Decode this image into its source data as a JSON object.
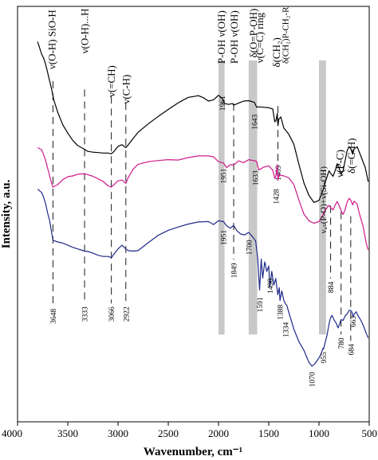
{
  "chart_data": {
    "type": "line",
    "title": "",
    "xlabel": "Wavenumber, cm⁻¹",
    "ylabel": "Intensity, a.u.",
    "xlim": [
      4000,
      500
    ],
    "x_reversed": true,
    "ylim": [
      0,
      1
    ],
    "yticks_shown": false,
    "grid": false,
    "legend": "none",
    "x_ticks": [
      "4000",
      "3500",
      "3000",
      "2500",
      "2000",
      "1500",
      "1000",
      "500"
    ],
    "shaded_bands": [
      {
        "from": 2000,
        "to": 1940
      },
      {
        "from": 1700,
        "to": 1615
      },
      {
        "from": 1000,
        "to": 930
      }
    ],
    "band_color": "#c8c8c8",
    "series": [
      {
        "color": "#000000",
        "x": [
          3800,
          3760,
          3740,
          3720,
          3700,
          3680,
          3660,
          3640,
          3600,
          3550,
          3500,
          3450,
          3400,
          3333,
          3300,
          3250,
          3200,
          3150,
          3100,
          3066,
          3040,
          3000,
          2960,
          2922,
          2900,
          2850,
          2800,
          2700,
          2600,
          2500,
          2400,
          2300,
          2250,
          2200,
          2150,
          2100,
          2050,
          2000,
          1961,
          1940,
          1900,
          1860,
          1849,
          1800,
          1750,
          1700,
          1643,
          1620,
          1600,
          1550,
          1500,
          1460,
          1440,
          1428,
          1415,
          1409,
          1400,
          1380,
          1350,
          1300,
          1250,
          1200,
          1150,
          1100,
          1050,
          1000,
          960,
          940,
          920,
          900,
          880,
          860,
          840,
          820,
          800,
          780,
          760,
          740,
          720,
          700,
          684,
          665,
          650,
          620,
          600,
          570,
          540,
          520,
          510
        ],
        "values": [
          0.915,
          0.885,
          0.875,
          0.86,
          0.84,
          0.82,
          0.8,
          0.775,
          0.745,
          0.715,
          0.695,
          0.677,
          0.665,
          0.656,
          0.651,
          0.649,
          0.648,
          0.647,
          0.647,
          0.645,
          0.651,
          0.663,
          0.667,
          0.66,
          0.666,
          0.682,
          0.697,
          0.717,
          0.735,
          0.752,
          0.768,
          0.781,
          0.783,
          0.785,
          0.78,
          0.772,
          0.775,
          0.786,
          0.778,
          0.766,
          0.764,
          0.766,
          0.762,
          0.767,
          0.772,
          0.773,
          0.769,
          0.757,
          0.758,
          0.757,
          0.756,
          0.753,
          0.722,
          0.725,
          0.742,
          0.713,
          0.728,
          0.734,
          0.707,
          0.692,
          0.668,
          0.62,
          0.575,
          0.545,
          0.528,
          0.533,
          0.557,
          0.575,
          0.59,
          0.604,
          0.597,
          0.591,
          0.604,
          0.621,
          0.611,
          0.596,
          0.604,
          0.629,
          0.653,
          0.662,
          0.658,
          0.644,
          0.657,
          0.662,
          0.65,
          0.631,
          0.612,
          0.589,
          0.578
        ]
      },
      {
        "color": "#d0198c",
        "x": [
          3800,
          3760,
          3740,
          3720,
          3700,
          3680,
          3660,
          3648,
          3600,
          3550,
          3500,
          3450,
          3400,
          3333,
          3300,
          3250,
          3200,
          3150,
          3100,
          3066,
          3040,
          3000,
          2960,
          2922,
          2900,
          2850,
          2800,
          2700,
          2600,
          2500,
          2400,
          2300,
          2200,
          2100,
          2050,
          2000,
          1951,
          1920,
          1880,
          1849,
          1800,
          1750,
          1700,
          1633,
          1620,
          1600,
          1550,
          1500,
          1460,
          1440,
          1428,
          1415,
          1409,
          1400,
          1350,
          1300,
          1250,
          1200,
          1150,
          1100,
          1050,
          1000,
          960,
          940,
          920,
          900,
          880,
          860,
          840,
          820,
          800,
          780,
          760,
          740,
          720,
          700,
          684,
          665,
          650,
          620,
          600,
          560,
          530,
          510
        ],
        "values": [
          0.66,
          0.655,
          0.643,
          0.628,
          0.61,
          0.592,
          0.574,
          0.565,
          0.571,
          0.583,
          0.59,
          0.592,
          0.596,
          0.597,
          0.595,
          0.591,
          0.585,
          0.579,
          0.568,
          0.565,
          0.571,
          0.58,
          0.582,
          0.574,
          0.587,
          0.608,
          0.62,
          0.626,
          0.629,
          0.631,
          0.63,
          0.636,
          0.64,
          0.64,
          0.638,
          0.626,
          0.623,
          0.612,
          0.619,
          0.618,
          0.628,
          0.624,
          0.631,
          0.628,
          0.626,
          0.606,
          0.613,
          0.616,
          0.606,
          0.586,
          0.593,
          0.619,
          0.581,
          0.594,
          0.592,
          0.587,
          0.571,
          0.534,
          0.5,
          0.484,
          0.478,
          0.482,
          0.498,
          0.51,
          0.515,
          0.521,
          0.515,
          0.51,
          0.521,
          0.53,
          0.521,
          0.508,
          0.499,
          0.511,
          0.529,
          0.538,
          0.534,
          0.522,
          0.531,
          0.524,
          0.503,
          0.47,
          0.43,
          0.414
        ]
      },
      {
        "color": "#1f2a88",
        "x": [
          3800,
          3760,
          3740,
          3720,
          3700,
          3680,
          3660,
          3648,
          3600,
          3550,
          3500,
          3450,
          3400,
          3333,
          3300,
          3250,
          3200,
          3150,
          3100,
          3066,
          3040,
          3000,
          2960,
          2922,
          2900,
          2850,
          2800,
          2700,
          2600,
          2500,
          2400,
          2300,
          2200,
          2100,
          2050,
          2000,
          1951,
          1920,
          1880,
          1849,
          1820,
          1780,
          1740,
          1700,
          1660,
          1630,
          1610,
          1591,
          1575,
          1560,
          1540,
          1520,
          1500,
          1490,
          1470,
          1450,
          1430,
          1410,
          1395,
          1388,
          1370,
          1350,
          1334,
          1320,
          1300,
          1250,
          1200,
          1150,
          1100,
          1070,
          1040,
          1000,
          980,
          960,
          955,
          940,
          920,
          900,
          884,
          870,
          850,
          830,
          810,
          800,
          780,
          760,
          740,
          720,
          700,
          684,
          670,
          663,
          650,
          630,
          610,
          590,
          570,
          550,
          530,
          510
        ],
        "values": [
          0.56,
          0.552,
          0.54,
          0.524,
          0.502,
          0.484,
          0.455,
          0.437,
          0.433,
          0.43,
          0.425,
          0.42,
          0.416,
          0.411,
          0.41,
          0.406,
          0.401,
          0.398,
          0.398,
          0.395,
          0.404,
          0.416,
          0.425,
          0.416,
          0.412,
          0.411,
          0.412,
          0.431,
          0.449,
          0.461,
          0.469,
          0.476,
          0.481,
          0.482,
          0.475,
          0.484,
          0.482,
          0.472,
          0.466,
          0.473,
          0.461,
          0.452,
          0.45,
          0.456,
          0.445,
          0.435,
          0.395,
          0.317,
          0.392,
          0.346,
          0.385,
          0.362,
          0.375,
          0.324,
          0.362,
          0.329,
          0.345,
          0.306,
          0.323,
          0.292,
          0.315,
          0.292,
          0.284,
          0.28,
          0.263,
          0.223,
          0.193,
          0.172,
          0.143,
          0.134,
          0.14,
          0.154,
          0.163,
          0.177,
          0.175,
          0.19,
          0.208,
          0.236,
          0.251,
          0.256,
          0.245,
          0.238,
          0.226,
          0.232,
          0.246,
          0.244,
          0.255,
          0.26,
          0.268,
          0.268,
          0.263,
          0.254,
          0.259,
          0.265,
          0.255,
          0.247,
          0.238,
          0.226,
          0.213,
          0.202
        ]
      }
    ],
    "ref_lines": [
      {
        "x": 3648,
        "label": "3648",
        "y_top": 0.82,
        "y_bot": 0.28
      },
      {
        "x": 3333,
        "label": "3333",
        "y_top": 0.8,
        "y_bot": 0.285
      },
      {
        "x": 3066,
        "label": "3066",
        "y_top": 0.783,
        "y_bot": 0.285
      },
      {
        "x": 2922,
        "label": "2922",
        "y_top": 0.768,
        "y_bot": 0.285
      },
      {
        "x": 1849,
        "label": "1849",
        "y_top": 0.766,
        "y_bot": 0.39
      },
      {
        "x": 1409,
        "label": "1409",
        "y_top": 0.76,
        "y_bot": 0.625
      },
      {
        "x": 884,
        "label": "884",
        "y_top": 0.52,
        "y_bot": 0.345
      },
      {
        "x": 780,
        "label": "780",
        "y_top": 0.505,
        "y_bot": 0.21
      },
      {
        "x": 684,
        "label": "684",
        "y_top": 0.495,
        "y_bot": 0.195
      }
    ],
    "annotations": [
      {
        "x": 3655,
        "y": 0.992,
        "rotated": true,
        "text": "ν(O-H) SiO-H"
      },
      {
        "x": 3330,
        "y": 0.995,
        "rotated": true,
        "text": "ν(O-H)...H"
      },
      {
        "x": 3063,
        "y": 0.858,
        "rotated": true,
        "text": "ν(=CH)"
      },
      {
        "x": 2918,
        "y": 0.836,
        "rotated": true,
        "text": "ν(C-H)"
      },
      {
        "x": 1968,
        "y": 0.99,
        "rotated": true,
        "text": "P-OH ν(OH)"
      },
      {
        "x": 1843,
        "y": 0.99,
        "rotated": true,
        "text": "P-OH ν(OH)"
      },
      {
        "x": 1650,
        "y": 0.995,
        "rotated": true,
        "text": "δ(O=P-OH)"
      },
      {
        "x": 1588,
        "y": 0.985,
        "rotated": true,
        "text": "ν(C=C) ring"
      },
      {
        "x": 1420,
        "y": 0.925,
        "rotated": true,
        "text": "δ(CH₂)"
      },
      {
        "x": 1338,
        "y": 0.999,
        "rotated": true,
        "text": "δ(CH₂)P-CH₂-R"
      },
      {
        "x": 962,
        "y": 0.615,
        "rotated": true,
        "text": "νₐₛ(P-O)+ν(Si-OH)"
      },
      {
        "x": 790,
        "y": 0.655,
        "rotated": true,
        "text": "ν(P-C)"
      },
      {
        "x": 673,
        "y": 0.683,
        "rotated": true,
        "text": "δ(=C-H)"
      }
    ],
    "peak_labels": [
      {
        "x": 1963,
        "y": 0.785,
        "text": "1961",
        "color": "#000000"
      },
      {
        "x": 1643,
        "y": 0.74,
        "text": "1643",
        "color": "#000000"
      },
      {
        "x": 1951,
        "y": 0.61,
        "text": "1951",
        "color": "#d0198c"
      },
      {
        "x": 1633,
        "y": 0.605,
        "text": "1633",
        "color": "#d0198c"
      },
      {
        "x": 1428,
        "y": 0.56,
        "text": "1428",
        "color": "#d0198c"
      },
      {
        "x": 1951,
        "y": 0.462,
        "text": "1951",
        "color": "#1f2a88"
      },
      {
        "x": 1700,
        "y": 0.438,
        "text": "1700",
        "color": "#1f2a88"
      },
      {
        "x": 1591,
        "y": 0.3,
        "text": "1591",
        "color": "#1f2a88"
      },
      {
        "x": 1490,
        "y": 0.345,
        "text": "1490",
        "color": "#1f2a88"
      },
      {
        "x": 1388,
        "y": 0.282,
        "text": "1388",
        "color": "#1f2a88"
      },
      {
        "x": 1334,
        "y": 0.24,
        "text": "1334",
        "color": "#1f2a88"
      },
      {
        "x": 1070,
        "y": 0.12,
        "text": "1070",
        "color": "#1f2a88"
      },
      {
        "x": 955,
        "y": 0.168,
        "text": "955",
        "color": "#1f2a88"
      },
      {
        "x": 663,
        "y": 0.255,
        "text": "663",
        "color": "#1f2a88"
      }
    ]
  }
}
